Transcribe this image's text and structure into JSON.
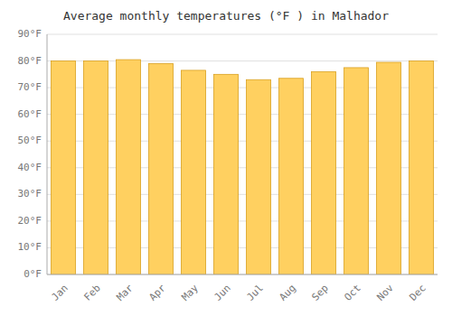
{
  "chart_data": {
    "type": "bar",
    "title": "Average monthly temperatures (°F ) in Malhador",
    "categories": [
      "Jan",
      "Feb",
      "Mar",
      "Apr",
      "May",
      "Jun",
      "Jul",
      "Aug",
      "Sep",
      "Oct",
      "Nov",
      "Dec"
    ],
    "values": [
      80.0,
      80.0,
      80.5,
      79.0,
      76.5,
      75.0,
      73.0,
      73.5,
      76.0,
      77.5,
      79.5,
      80.0
    ],
    "color": "#FFD060",
    "ylim": [
      0,
      90
    ],
    "yticks": [
      {
        "value": 0,
        "label": "0°F"
      },
      {
        "value": 10,
        "label": "10°F"
      },
      {
        "value": 20,
        "label": "20°F"
      },
      {
        "value": 30,
        "label": "30°F"
      },
      {
        "value": 40,
        "label": "40°F"
      },
      {
        "value": 50,
        "label": "50°F"
      },
      {
        "value": 60,
        "label": "60°F"
      },
      {
        "value": 70,
        "label": "70°F"
      },
      {
        "value": 80,
        "label": "80°F"
      },
      {
        "value": 90,
        "label": "90°F"
      }
    ],
    "grid": true
  }
}
